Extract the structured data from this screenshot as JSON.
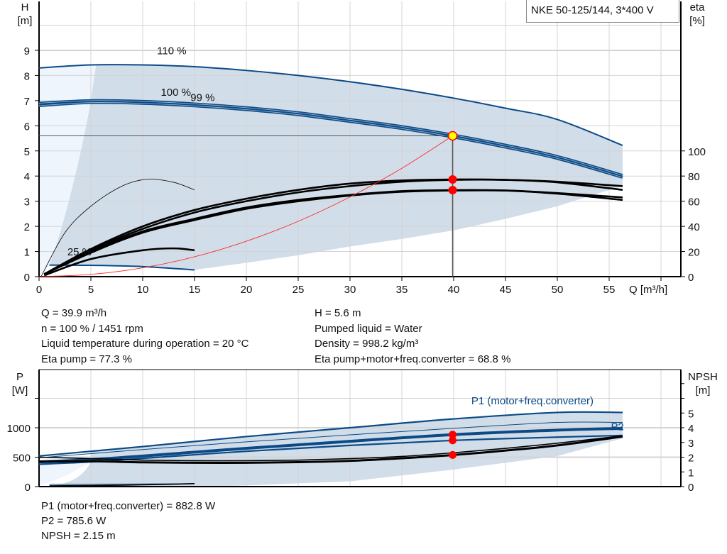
{
  "legend_title": "NKE 50-125/144, 3*400 V",
  "info_top": {
    "left": [
      "Q = 39.9 m³/h",
      "n = 100 % / 1451 rpm",
      "Liquid temperature during operation = 20 °C",
      "Eta pump = 77.3 %"
    ],
    "right": [
      "H = 5.6 m",
      "Pumped liquid = Water",
      "Density = 998.2 kg/m³",
      "Eta pump+motor+freq.converter = 68.8 %"
    ]
  },
  "info_bottom": [
    "P1 (motor+freq.converter) = 882.8 W",
    "P2 = 785.6 W",
    "NPSH = 2.15 m"
  ],
  "colors": {
    "curve_blue": "#0b4a87",
    "shade": "#d1dde9",
    "shade_light": "#eef5fd",
    "system_curve": "#ff2a2a",
    "duty_point": "#ffff00",
    "marker": "#ff0000",
    "grid": "#d4d4d4"
  },
  "chart_data": [
    {
      "type": "line",
      "title": "",
      "xlabel": "Q [m³/h]",
      "ylabel": "H\n[m]",
      "ylabel_top": "H",
      "yunit_top": "[m]",
      "y2label_top": "eta",
      "y2unit_top": "[%]",
      "xlim": [
        0,
        62
      ],
      "ylim": [
        0,
        10.9
      ],
      "y2lim": [
        0,
        218
      ],
      "xticks": [
        0,
        5,
        10,
        15,
        20,
        25,
        30,
        35,
        40,
        45,
        50,
        55
      ],
      "yticks": [
        0,
        1,
        2,
        3,
        4,
        5,
        6,
        7,
        8,
        9
      ],
      "y2ticks": [
        0,
        20,
        40,
        60,
        80,
        100
      ],
      "grid": true,
      "curve_labels": [
        {
          "text": "110 %",
          "q": 12.8,
          "h": 8.85
        },
        {
          "text": "100 %",
          "q": 13.2,
          "h": 7.2
        },
        {
          "text": "99 %",
          "q": 12.9,
          "h": 7.1
        },
        {
          "text": "25 %",
          "q": 3.9,
          "h": 0.85
        }
      ],
      "series": [
        {
          "name": "110 %",
          "kind": "H",
          "q": [
            0,
            5,
            10,
            15,
            20,
            25,
            30,
            35,
            40,
            45,
            50,
            56.3
          ],
          "v": [
            8.3,
            8.42,
            8.42,
            8.35,
            8.2,
            8.0,
            7.75,
            7.45,
            7.1,
            6.7,
            6.25,
            5.22
          ]
        },
        {
          "name": "100 %",
          "kind": "H",
          "q": [
            0,
            5,
            10,
            15,
            20,
            25,
            30,
            35,
            40,
            45,
            50,
            56.3
          ],
          "v": [
            6.9,
            7.0,
            6.97,
            6.87,
            6.72,
            6.52,
            6.25,
            5.97,
            5.63,
            5.23,
            4.78,
            4.03
          ]
        },
        {
          "name": "99 %",
          "kind": "H",
          "q": [
            0,
            5,
            10,
            15,
            20,
            25,
            30,
            35,
            40,
            45,
            50,
            56.3
          ],
          "v": [
            6.8,
            6.92,
            6.89,
            6.79,
            6.64,
            6.44,
            6.17,
            5.89,
            5.55,
            5.15,
            4.7,
            3.95
          ]
        },
        {
          "name": "25 %",
          "kind": "H",
          "q": [
            1,
            5,
            10,
            15
          ],
          "v": [
            0.46,
            0.45,
            0.4,
            0.27
          ]
        },
        {
          "kind": "eta",
          "label": "eta pump 100 %",
          "q": [
            0.5,
            5,
            10,
            15,
            20,
            25,
            30,
            35,
            40,
            45,
            50,
            56.3
          ],
          "v": [
            2,
            22,
            40,
            53,
            62,
            69,
            74,
            76.5,
            77.3,
            77,
            75,
            69
          ]
        },
        {
          "kind": "eta",
          "label": "eta pump 110 %",
          "q": [
            0.5,
            5,
            10,
            15,
            20,
            25,
            30,
            35,
            40,
            45,
            50,
            56.3
          ],
          "v": [
            2,
            21,
            38,
            51,
            60,
            67,
            72,
            75.5,
            77,
            77,
            75.5,
            72
          ]
        },
        {
          "kind": "eta",
          "label": "eta total 100 %",
          "q": [
            0.5,
            5,
            10,
            15,
            20,
            25,
            30,
            35,
            40,
            45,
            50,
            56.3
          ],
          "v": [
            2,
            20,
            36,
            46,
            55,
            61,
            65,
            68,
            68.8,
            68.5,
            66,
            61
          ]
        },
        {
          "kind": "eta",
          "label": "eta total 99 %",
          "q": [
            0.5,
            5,
            10,
            15,
            20,
            25,
            30,
            35,
            40,
            45,
            50,
            56.3
          ],
          "v": [
            2,
            19,
            35,
            45,
            54,
            60,
            64.5,
            67.5,
            68.5,
            68.5,
            66.5,
            63
          ]
        },
        {
          "kind": "eta",
          "label": "eta total 25 %",
          "q": [
            0.5,
            5,
            10,
            13,
            15
          ],
          "v": [
            1,
            14,
            21,
            22.5,
            21
          ]
        },
        {
          "kind": "eta",
          "label": "eta pump 25 %",
          "q": [
            0.2,
            2.5,
            5,
            8,
            10.5,
            13,
            15
          ],
          "v": [
            0,
            35,
            56,
            72,
            77.5,
            75,
            69
          ]
        },
        {
          "kind": "system",
          "label": "system curve",
          "q": [
            0,
            5,
            10,
            15,
            20,
            25,
            30,
            35,
            39.9
          ],
          "v": [
            0,
            0.09,
            0.35,
            0.79,
            1.41,
            2.2,
            3.17,
            4.31,
            5.6
          ]
        }
      ],
      "operating_range_lower": {
        "q": [
          15,
          20,
          25,
          30,
          35,
          40,
          45,
          50,
          55,
          56.3
        ],
        "h": [
          0.27,
          0.55,
          0.85,
          1.2,
          1.5,
          1.84,
          2.3,
          2.8,
          3.45,
          3.6
        ]
      },
      "duty_point": {
        "q": 39.9,
        "h": 5.6,
        "eta_pump": 77.3,
        "eta_total": 68.8
      }
    },
    {
      "type": "line",
      "title": "",
      "ylabel_top": "P",
      "yunit_top": "[W]",
      "y2label_top": "NPSH",
      "y2unit_top": "[m]",
      "xlim": [
        0,
        62
      ],
      "ylim": [
        0,
        2000
      ],
      "y2lim": [
        0,
        8
      ],
      "yticks": [
        0,
        500,
        1000
      ],
      "y2ticks": [
        0,
        1,
        2,
        3,
        4,
        5
      ],
      "grid": true,
      "curve_labels": [
        {
          "text": "P1 (motor+freq.converter)",
          "q": 47.6,
          "p": 1400
        },
        {
          "text": "P2",
          "q": 55.8,
          "p": 960
        }
      ],
      "series": [
        {
          "kind": "P",
          "label": "P1 110 %",
          "q": [
            0,
            5,
            10,
            20,
            30,
            40,
            50,
            56.3
          ],
          "v": [
            520,
            600,
            680,
            850,
            1000,
            1150,
            1260,
            1260
          ]
        },
        {
          "kind": "P",
          "label": "P2 110 %",
          "q": [
            0,
            5,
            10,
            20,
            30,
            40,
            50,
            56.3
          ],
          "v": [
            490,
            560,
            630,
            760,
            880,
            990,
            1090,
            1090
          ]
        },
        {
          "name": "P1 (motor+freq.converter)",
          "kind": "P",
          "q": [
            0,
            5,
            10,
            20,
            30,
            40,
            50,
            56.3
          ],
          "v": [
            420,
            460,
            520,
            650,
            770,
            882.8,
            960,
            990
          ]
        },
        {
          "name": "P2",
          "kind": "P",
          "q": [
            0,
            5,
            10,
            20,
            30,
            40,
            50,
            56.3
          ],
          "v": [
            380,
            420,
            480,
            600,
            700,
            785.6,
            840,
            870
          ]
        },
        {
          "kind": "npsh",
          "label": "NPSH",
          "q": [
            0,
            5,
            10,
            15,
            20,
            25,
            30,
            35,
            40,
            45,
            50,
            56.3
          ],
          "v": [
            1.7,
            1.72,
            1.65,
            1.62,
            1.62,
            1.66,
            1.75,
            1.93,
            2.15,
            2.45,
            2.8,
            3.4
          ]
        },
        {
          "kind": "npsh",
          "label": "NPSH 110 %",
          "q": [
            0,
            5,
            10,
            15,
            20,
            25,
            30,
            35,
            40,
            45,
            50,
            56.3
          ],
          "v": [
            2.0,
            1.9,
            1.8,
            1.76,
            1.76,
            1.8,
            1.9,
            2.05,
            2.3,
            2.6,
            2.95,
            3.45
          ]
        },
        {
          "kind": "P",
          "label": "P1 25 %",
          "q": [
            1,
            5,
            10,
            15
          ],
          "v": [
            40,
            42,
            45,
            50
          ]
        },
        {
          "kind": "npsh",
          "label": "NPSH 25 %",
          "q": [
            1,
            5,
            10,
            15
          ],
          "v": [
            0.05,
            0.07,
            0.12,
            0.2
          ]
        }
      ],
      "operating_range_lower": {
        "q": [
          15,
          20,
          30,
          40,
          50,
          56.3
        ],
        "p": [
          0,
          20,
          90,
          290,
          520,
          820
        ]
      },
      "duty_point": {
        "q": 39.9,
        "p1": 882.8,
        "p2": 785.6,
        "npsh": 2.15
      }
    }
  ]
}
